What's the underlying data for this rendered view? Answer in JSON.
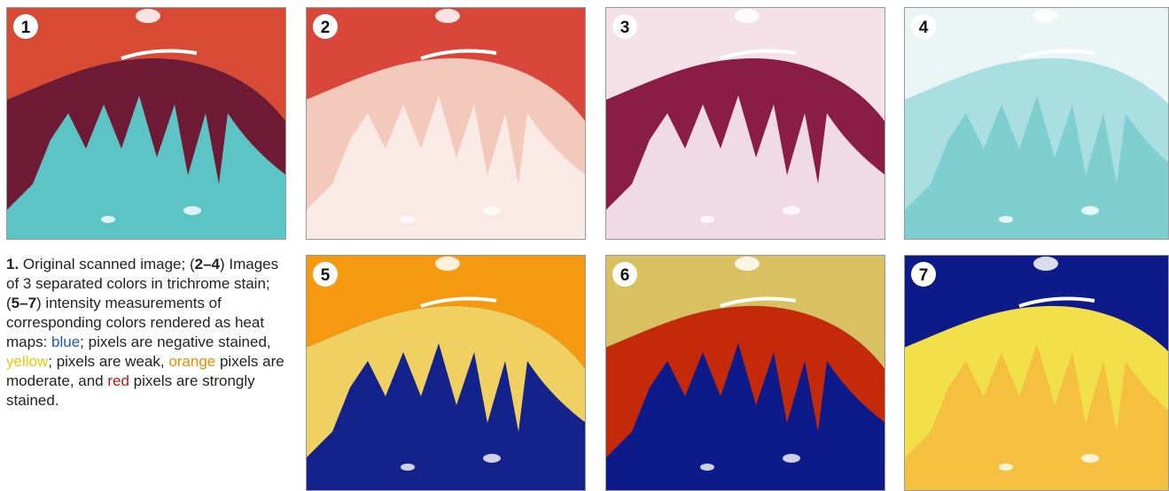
{
  "panels": [
    {
      "label": "1"
    },
    {
      "label": "2"
    },
    {
      "label": "3"
    },
    {
      "label": "4"
    },
    {
      "label": "5"
    },
    {
      "label": "6"
    },
    {
      "label": "7"
    }
  ],
  "caption": [
    "1.",
    " Original scanned image; (",
    "2–4",
    ") Images of 3 separated colors in trichrome stain; (",
    "5–7",
    ") intensity measurements of corresponding colors rendered as heat maps: ",
    "blue",
    "; pixels are negative stained, ",
    "yellow",
    "; pixels are weak, ",
    "orange",
    " pixels are moderate, and ",
    "red",
    " pixels are strongly stained."
  ]
}
